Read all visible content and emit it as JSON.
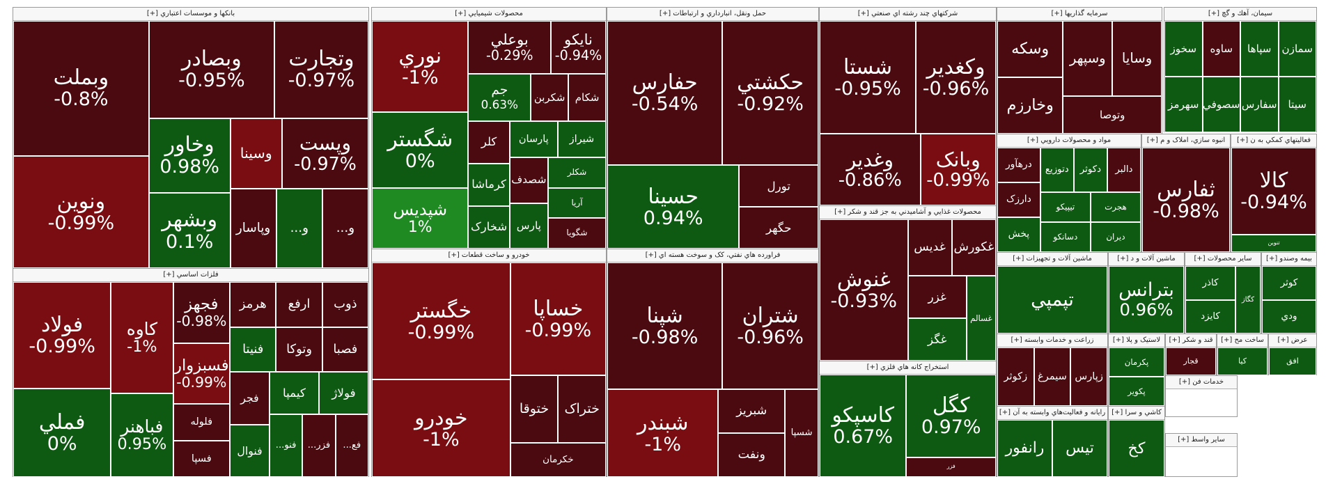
{
  "chart_data": {
    "type": "treemap",
    "color_scale": {
      "neg": "#4a0a0f",
      "neg_strong": "#7a0d12",
      "pos": "#0e5a12",
      "pos_strong": "#1f8a22"
    },
    "sectors": [
      {
        "name": "بانکها و موسسات اعتباري [+]",
        "tiles": [
          {
            "symbol": "وبملت",
            "change": "-0.8%",
            "v": -0.8
          },
          {
            "symbol": "ونوين",
            "change": "-0.99%",
            "v": -0.99
          },
          {
            "symbol": "وبصادر",
            "change": "-0.95%",
            "v": -0.95
          },
          {
            "symbol": "وتجارت",
            "change": "-0.97%",
            "v": -0.97
          },
          {
            "symbol": "وخاور",
            "change": "0.98%",
            "v": 0.98
          },
          {
            "symbol": "وبشهر",
            "change": "0.1%",
            "v": 0.1
          },
          {
            "symbol": "وسينا",
            "change": "",
            "v": -1
          },
          {
            "symbol": "وپست",
            "change": "-0.97%",
            "v": -0.97
          },
          {
            "symbol": "وپاسار",
            "change": "",
            "v": -0.5
          },
          {
            "symbol": "و...",
            "change": "",
            "v": 0.4
          },
          {
            "symbol": "و...",
            "change": "",
            "v": -0.4
          }
        ]
      },
      {
        "name": "فلزات اساسي [+]",
        "tiles": [
          {
            "symbol": "فولاد",
            "change": "-0.99%",
            "v": -0.99
          },
          {
            "symbol": "فملي",
            "change": "0%",
            "v": 0
          },
          {
            "symbol": "کاوه",
            "change": "-1%",
            "v": -1
          },
          {
            "symbol": "فباهنر",
            "change": "0.95%",
            "v": 0.95
          },
          {
            "symbol": "فجهز",
            "change": "-0.98%",
            "v": -0.98
          },
          {
            "symbol": "فسبزوار",
            "change": "-0.99%",
            "v": -0.99
          },
          {
            "symbol": "فلوله",
            "change": "",
            "v": -0.6
          },
          {
            "symbol": "فسپا",
            "change": "",
            "v": -0.6
          },
          {
            "symbol": "هرمز",
            "change": "",
            "v": -0.6
          },
          {
            "symbol": "ارفع",
            "change": "",
            "v": -0.6
          },
          {
            "symbol": "ذوب",
            "change": "",
            "v": -0.5
          },
          {
            "symbol": "فنيتا",
            "change": "",
            "v": 0.6
          },
          {
            "symbol": "وتوکا",
            "change": "",
            "v": -0.6
          },
          {
            "symbol": "فصبا",
            "change": "",
            "v": -0.6
          },
          {
            "symbol": "فجر",
            "change": "",
            "v": -0.6
          },
          {
            "symbol": "فنوال",
            "change": "",
            "v": 0.6
          },
          {
            "symbol": "کيمپا",
            "change": "",
            "v": 0.6
          },
          {
            "symbol": "فولاژ",
            "change": "",
            "v": 0.6
          },
          {
            "symbol": "فنو...",
            "change": "",
            "v": 0.6
          },
          {
            "symbol": "فزر...",
            "change": "",
            "v": -0.6
          },
          {
            "symbol": "فع...",
            "change": "",
            "v": -0.6
          }
        ]
      },
      {
        "name": "محصولات شيميايي [+]",
        "tiles": [
          {
            "symbol": "نوري",
            "change": "-1%",
            "v": -1
          },
          {
            "symbol": "شگستر",
            "change": "0%",
            "v": 0
          },
          {
            "symbol": "شپديس",
            "change": "1%",
            "v": 1
          },
          {
            "symbol": "بوعلي",
            "change": "-0.29%",
            "v": -0.29
          },
          {
            "symbol": "نايکو",
            "change": "-0.94%",
            "v": -0.94
          },
          {
            "symbol": "جم",
            "change": "0.63%",
            "v": 0.63
          },
          {
            "symbol": "شکربن",
            "change": "",
            "v": -0.6
          },
          {
            "symbol": "شکام",
            "change": "",
            "v": -0.6
          },
          {
            "symbol": "کلر",
            "change": "",
            "v": -0.6
          },
          {
            "symbol": "کرماشا",
            "change": "",
            "v": 0.6
          },
          {
            "symbol": "شخارک",
            "change": "",
            "v": 0.6
          },
          {
            "symbol": "پارسان",
            "change": "",
            "v": 0.6
          },
          {
            "symbol": "شيراز",
            "change": "",
            "v": 0.6
          },
          {
            "symbol": "شصدف",
            "change": "",
            "v": -0.6
          },
          {
            "symbol": "پارس",
            "change": "",
            "v": 0.6
          },
          {
            "symbol": "شکلر",
            "change": "",
            "v": 0.6
          },
          {
            "symbol": "آريا",
            "change": "",
            "v": 0.6
          },
          {
            "symbol": "شگويا",
            "change": "",
            "v": -0.6
          }
        ]
      },
      {
        "name": "حمل ونقل، انبارداري و ارتباطات [+]",
        "tiles": [
          {
            "symbol": "حفارس",
            "change": "-0.54%",
            "v": -0.54
          },
          {
            "symbol": "حکشتي",
            "change": "-0.92%",
            "v": -0.92
          },
          {
            "symbol": "حسينا",
            "change": "0.94%",
            "v": 0.94
          },
          {
            "symbol": "تورل",
            "change": "",
            "v": -0.6
          },
          {
            "symbol": "حگهر",
            "change": "",
            "v": -0.6
          }
        ]
      },
      {
        "name": "خودرو و ساخت قطعات [+]",
        "tiles": [
          {
            "symbol": "خگستر",
            "change": "-0.99%",
            "v": -0.99
          },
          {
            "symbol": "خودرو",
            "change": "-1%",
            "v": -1
          },
          {
            "symbol": "خساپا",
            "change": "-0.99%",
            "v": -0.99
          },
          {
            "symbol": "ختوقا",
            "change": "",
            "v": -0.6
          },
          {
            "symbol": "ختراک",
            "change": "",
            "v": -0.6
          },
          {
            "symbol": "خکرمان",
            "change": "",
            "v": -0.6
          }
        ]
      },
      {
        "name": "فراورده هاي نفتي، کک و سوخت هسته اي [+]",
        "tiles": [
          {
            "symbol": "شپنا",
            "change": "-0.98%",
            "v": -0.98
          },
          {
            "symbol": "شتران",
            "change": "-0.96%",
            "v": -0.96
          },
          {
            "symbol": "شبندر",
            "change": "-1%",
            "v": -1
          },
          {
            "symbol": "شبريز",
            "change": "",
            "v": -0.6
          },
          {
            "symbol": "ونفت",
            "change": "",
            "v": -0.6
          },
          {
            "symbol": "شسپا",
            "change": "",
            "v": -0.6
          }
        ]
      },
      {
        "name": "شرکتهاي چند رشته اي صنعتي [+]",
        "tiles": [
          {
            "symbol": "شستا",
            "change": "-0.95%",
            "v": -0.95
          },
          {
            "symbol": "وکغدير",
            "change": "-0.96%",
            "v": -0.96
          },
          {
            "symbol": "وغدير",
            "change": "-0.86%",
            "v": -0.86
          },
          {
            "symbol": "وبانک",
            "change": "-0.99%",
            "v": -0.99
          }
        ]
      },
      {
        "name": "محصولات غذايي و آشاميدني به جز قند و شکر [+]",
        "tiles": [
          {
            "symbol": "غنوش",
            "change": "-0.93%",
            "v": -0.93
          },
          {
            "symbol": "غديس",
            "change": "",
            "v": -0.6
          },
          {
            "symbol": "غکورش",
            "change": "",
            "v": -0.6
          },
          {
            "symbol": "غزر",
            "change": "",
            "v": -0.6
          },
          {
            "symbol": "غگز",
            "change": "",
            "v": 0.6
          },
          {
            "symbol": "غسالم",
            "change": "",
            "v": 0.6
          }
        ]
      },
      {
        "name": "استخراج کانه هاي فلزي [+]",
        "tiles": [
          {
            "symbol": "کاسپکو",
            "change": "0.67%",
            "v": 0.67
          },
          {
            "symbol": "کگل",
            "change": "0.97%",
            "v": 0.97
          },
          {
            "symbol": "فزر",
            "change": "",
            "v": -0.6
          }
        ]
      },
      {
        "name": "سرمايه گذاريها [+]",
        "tiles": [
          {
            "symbol": "وسکه",
            "change": "",
            "v": -0.6
          },
          {
            "symbol": "وخارزم",
            "change": "",
            "v": -0.6
          },
          {
            "symbol": "وسپهر",
            "change": "",
            "v": -0.6
          },
          {
            "symbol": "وسايا",
            "change": "",
            "v": -0.6
          },
          {
            "symbol": "وتوصا",
            "change": "",
            "v": -0.6
          }
        ]
      },
      {
        "name": "مواد و محصولات دارويي [+]",
        "tiles": [
          {
            "symbol": "درهآور",
            "change": "",
            "v": -0.6
          },
          {
            "symbol": "دارزک",
            "change": "",
            "v": -0.6
          },
          {
            "symbol": "پخش",
            "change": "",
            "v": 0.6
          },
          {
            "symbol": "دتوزيع",
            "change": "",
            "v": 0.6
          },
          {
            "symbol": "دکوثر",
            "change": "",
            "v": 0.6
          },
          {
            "symbol": "دالبر",
            "change": "",
            "v": -0.6
          },
          {
            "symbol": "تيپيکو",
            "change": "",
            "v": 0.6
          },
          {
            "symbol": "دسانکو",
            "change": "",
            "v": 0.6
          },
          {
            "symbol": "هجرت",
            "change": "",
            "v": 0.6
          },
          {
            "symbol": "ديران",
            "change": "",
            "v": 0.6
          }
        ]
      },
      {
        "name": "سيمان، آهك و گچ [+]",
        "tiles": [
          {
            "symbol": "سخوز",
            "change": "",
            "v": 0.6
          },
          {
            "symbol": "سهرمز",
            "change": "",
            "v": 0.6
          },
          {
            "symbol": "ساوه",
            "change": "",
            "v": -0.6
          },
          {
            "symbol": "سصوفي",
            "change": "",
            "v": 0.6
          },
          {
            "symbol": "سپاها",
            "change": "",
            "v": 0.6
          },
          {
            "symbol": "سمازن",
            "change": "",
            "v": 0.6
          },
          {
            "symbol": "سفارس",
            "change": "",
            "v": 0.6
          },
          {
            "symbol": "سيتا",
            "change": "",
            "v": 0.6
          }
        ]
      },
      {
        "name": "انبوه سازي، املاک و م [+]",
        "tiles": [
          {
            "symbol": "ثفارس",
            "change": "-0.98%",
            "v": -0.98
          }
        ]
      },
      {
        "name": "فعاليتهاي کمکي به ن [+]",
        "tiles": [
          {
            "symbol": "کالا",
            "change": "-0.94%",
            "v": -0.94
          },
          {
            "symbol": "تنوين",
            "change": "",
            "v": 0.6
          }
        ]
      },
      {
        "name": "ماشين آلات و تجهيزات [+]",
        "tiles": [
          {
            "symbol": "تپمپي",
            "change": "",
            "v": 0.6
          }
        ]
      },
      {
        "name": "ماشين آلات و د [+]",
        "tiles": [
          {
            "symbol": "بترانس",
            "change": "0.96%",
            "v": 0.96
          }
        ]
      },
      {
        "name": "ساير محصولات [+]",
        "tiles": [
          {
            "symbol": "کاذر",
            "change": "",
            "v": 0.6
          },
          {
            "symbol": "کايزد",
            "change": "",
            "v": 0.6
          },
          {
            "symbol": "کگاز",
            "change": "",
            "v": 0.6
          }
        ]
      },
      {
        "name": "بيمه وصندو [+]",
        "tiles": [
          {
            "symbol": "کوثر",
            "change": "",
            "v": 0.6
          },
          {
            "symbol": "ودي",
            "change": "",
            "v": 0.6
          }
        ]
      },
      {
        "name": "زراعت و خدمات وابسته [+]",
        "tiles": [
          {
            "symbol": "زکوثر",
            "change": "",
            "v": -0.6
          },
          {
            "symbol": "سيمرغ",
            "change": "",
            "v": -0.6
          },
          {
            "symbol": "زپارس",
            "change": "",
            "v": -0.6
          }
        ]
      },
      {
        "name": "لاستيک و پلا [+]",
        "tiles": [
          {
            "symbol": "پکرمان",
            "change": "",
            "v": 0.6
          },
          {
            "symbol": "پکوير",
            "change": "",
            "v": 0.6
          }
        ]
      },
      {
        "name": "قند و شکر [+]",
        "tiles": [
          {
            "symbol": "قجار",
            "change": "",
            "v": -0.6
          }
        ]
      },
      {
        "name": "ساخت مح [+]",
        "tiles": [
          {
            "symbol": "کيا",
            "change": "",
            "v": 0.6
          }
        ]
      },
      {
        "name": "عرض [+]",
        "tiles": [
          {
            "symbol": "افق",
            "change": "",
            "v": 0.6
          }
        ]
      },
      {
        "name": "رايانه و فعاليت‌هاي وابسته به آن [+]",
        "tiles": [
          {
            "symbol": "رانفور",
            "change": "",
            "v": 0.6
          },
          {
            "symbol": "تيس",
            "change": "",
            "v": 0.6
          }
        ]
      },
      {
        "name": "کاشي و سرا [+]",
        "tiles": [
          {
            "symbol": "کخ",
            "change": "",
            "v": 0.6
          }
        ]
      },
      {
        "name": "خدمات فن [+]",
        "tiles": []
      },
      {
        "name": "ساير واسط [+]",
        "tiles": []
      }
    ]
  }
}
